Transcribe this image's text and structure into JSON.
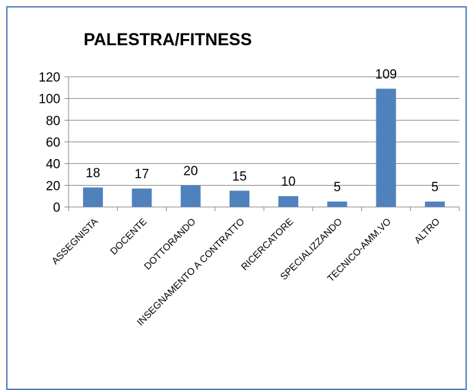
{
  "chart_data": {
    "type": "bar",
    "title": "PALESTRA/FITNESS",
    "categories": [
      "ASSEGNISTA",
      "DOCENTE",
      "DOTTORANDO",
      "INSEGNAMENTO A CONTRATTO",
      "RICERCATORE",
      "SPECIALIZZANDO",
      "TECNICO-AMM.VO",
      "ALTRO"
    ],
    "values": [
      18,
      17,
      20,
      15,
      10,
      5,
      109,
      5
    ],
    "ylim": [
      0,
      120
    ],
    "yticks": [
      0,
      20,
      40,
      60,
      80,
      100,
      120
    ],
    "grid": true,
    "legend": "none",
    "colors": {
      "bar": "#4f81bd",
      "grid": "#868686",
      "frame": "#4f81bd"
    }
  }
}
